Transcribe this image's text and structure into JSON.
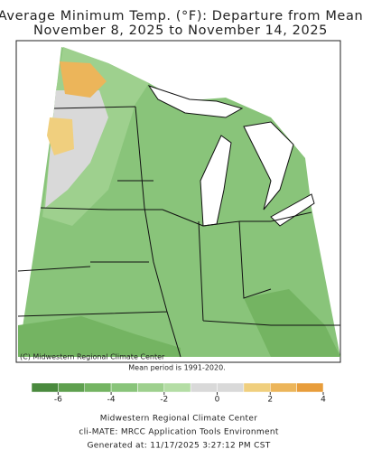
{
  "header": {
    "title_line1": "Average Minimum Temp. (°F): Departure from Mean",
    "title_line2": "November 8, 2025 to November 14, 2025"
  },
  "map": {
    "credit": "(C) Midwestern Regional Climate Center",
    "note": "Mean period is 1991-2020."
  },
  "colorbar": {
    "bins": [
      -7,
      -6,
      -5,
      -4,
      -3,
      -2,
      -1,
      0,
      1,
      2,
      3,
      4
    ],
    "colors": [
      "#4a8a3e",
      "#5fa04f",
      "#74b462",
      "#89c47a",
      "#9ed08e",
      "#b4dda5",
      "#d9d9d9",
      "#d9d9d9",
      "#f0cf7e",
      "#ecb55a",
      "#e89d3b"
    ],
    "ticks": [
      -6,
      -4,
      -2,
      0,
      2,
      4
    ]
  },
  "footer": {
    "line1": "Midwestern Regional Climate Center",
    "line2": "cli-MATE: MRCC Application Tools Environment",
    "line3": "Generated at: 11/17/2025 3:27:12 PM CST"
  }
}
